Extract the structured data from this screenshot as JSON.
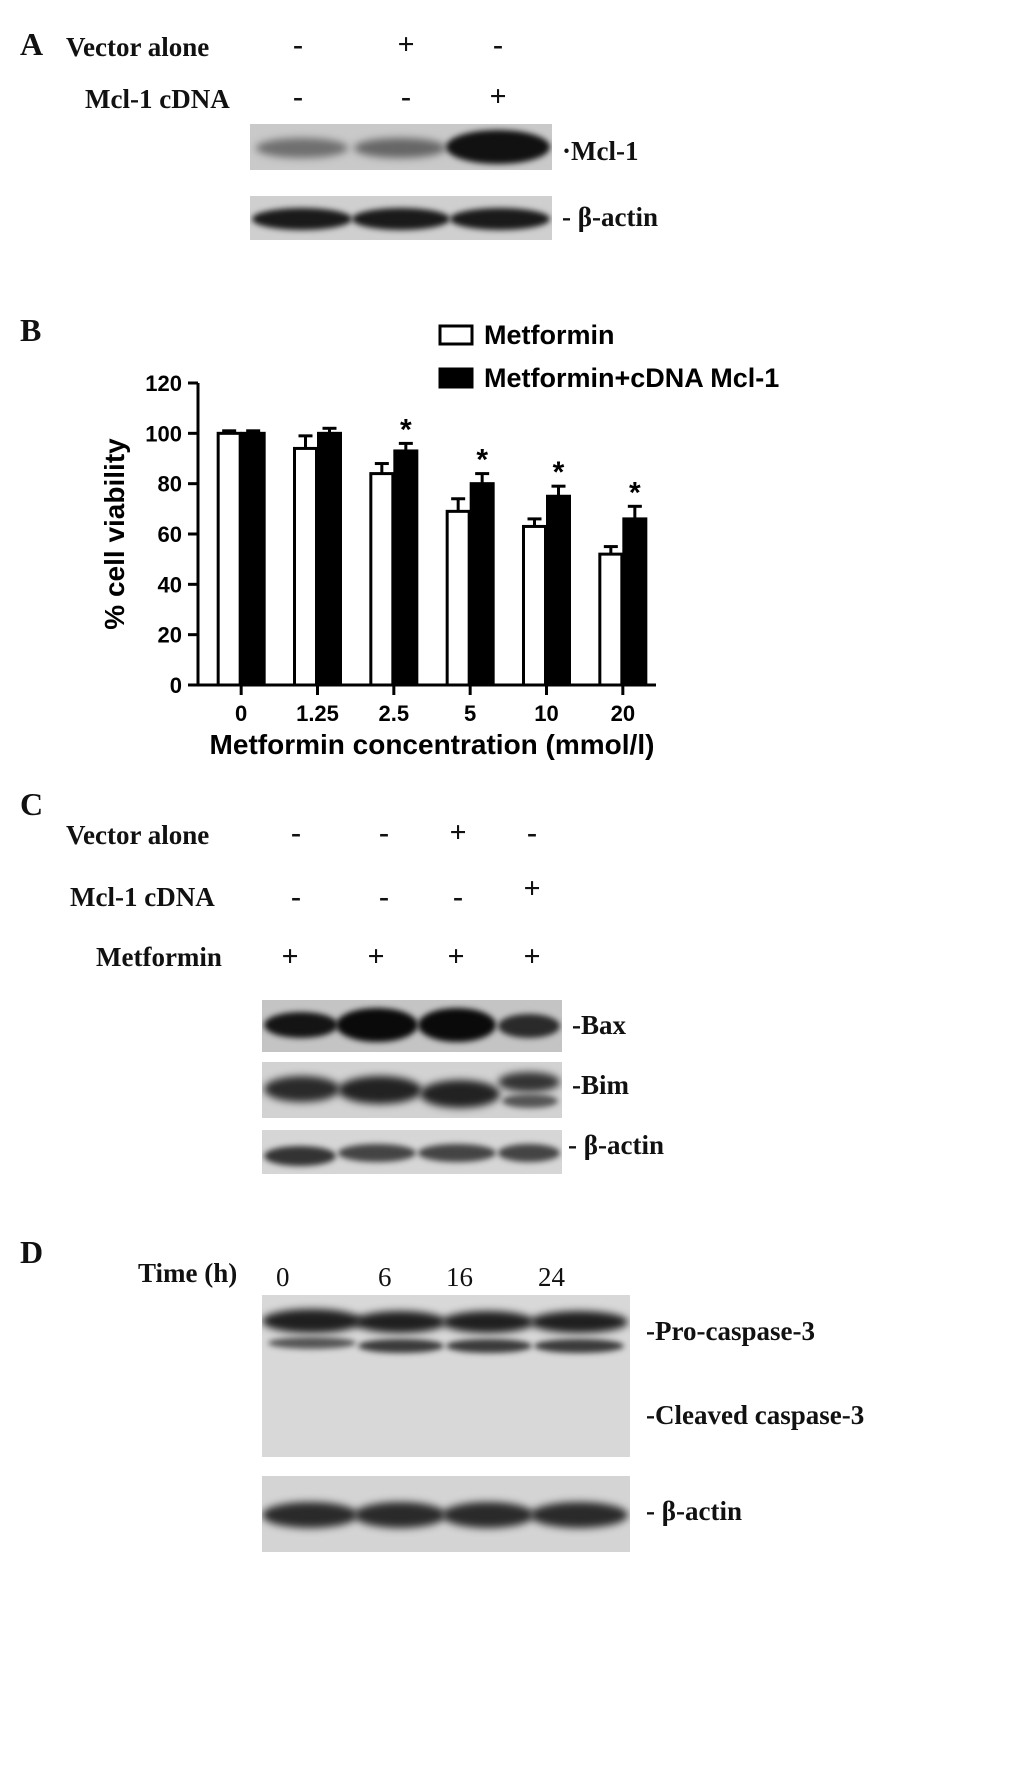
{
  "panelA": {
    "letter": "A",
    "rows": [
      {
        "label": "Vector alone",
        "signs": [
          "-",
          "+",
          "-"
        ]
      },
      {
        "label": "Mcl-1 cDNA",
        "signs": [
          "-",
          "-",
          "+"
        ]
      }
    ],
    "markers": [
      "Mcl-1",
      "β-actin"
    ],
    "blots": {
      "mcl1": [
        0.35,
        0.4,
        0.95
      ],
      "actin": [
        0.9,
        0.9,
        0.9
      ]
    }
  },
  "panelB": {
    "letter": "B",
    "chart_data": {
      "type": "bar",
      "categories": [
        "0",
        "1.25",
        "2.5",
        "5",
        "10",
        "20"
      ],
      "series": [
        {
          "name": "Metformin",
          "values": [
            100,
            94,
            84,
            69,
            63,
            52
          ],
          "errors": [
            1,
            5,
            4,
            5,
            3,
            3
          ],
          "fill": "#ffffff"
        },
        {
          "name": "Metformin+cDNA Mcl-1",
          "values": [
            100,
            100,
            93,
            80,
            75,
            66
          ],
          "errors": [
            1,
            2,
            3,
            4,
            4,
            5
          ],
          "fill": "#000000"
        }
      ],
      "significance": [
        "",
        "",
        "*",
        "*",
        "*",
        "*"
      ],
      "xlabel": "Metformin concentration (mmol/l)",
      "ylabel": "% cell viability",
      "ylim": [
        0,
        120
      ],
      "yticks": [
        0,
        20,
        40,
        60,
        80,
        100,
        120
      ],
      "legend_position": "top-right",
      "grid": false
    }
  },
  "panelC": {
    "letter": "C",
    "rows": [
      {
        "label": "Vector alone",
        "signs": [
          "-",
          "-",
          "+",
          "-"
        ]
      },
      {
        "label": "Mcl-1 cDNA",
        "signs": [
          "-",
          "-",
          "-",
          "+"
        ]
      },
      {
        "label": "Metformin",
        "signs": [
          "+",
          "+",
          "+",
          "+"
        ]
      }
    ],
    "markers": [
      "Bax",
      "Bim",
      "β-actin"
    ]
  },
  "panelD": {
    "letter": "D",
    "time_label": "Time (h)",
    "times": [
      "0",
      "6",
      "16",
      "24"
    ],
    "markers": [
      "Pro-caspase-3",
      "Cleaved caspase-3",
      "β-actin"
    ]
  }
}
